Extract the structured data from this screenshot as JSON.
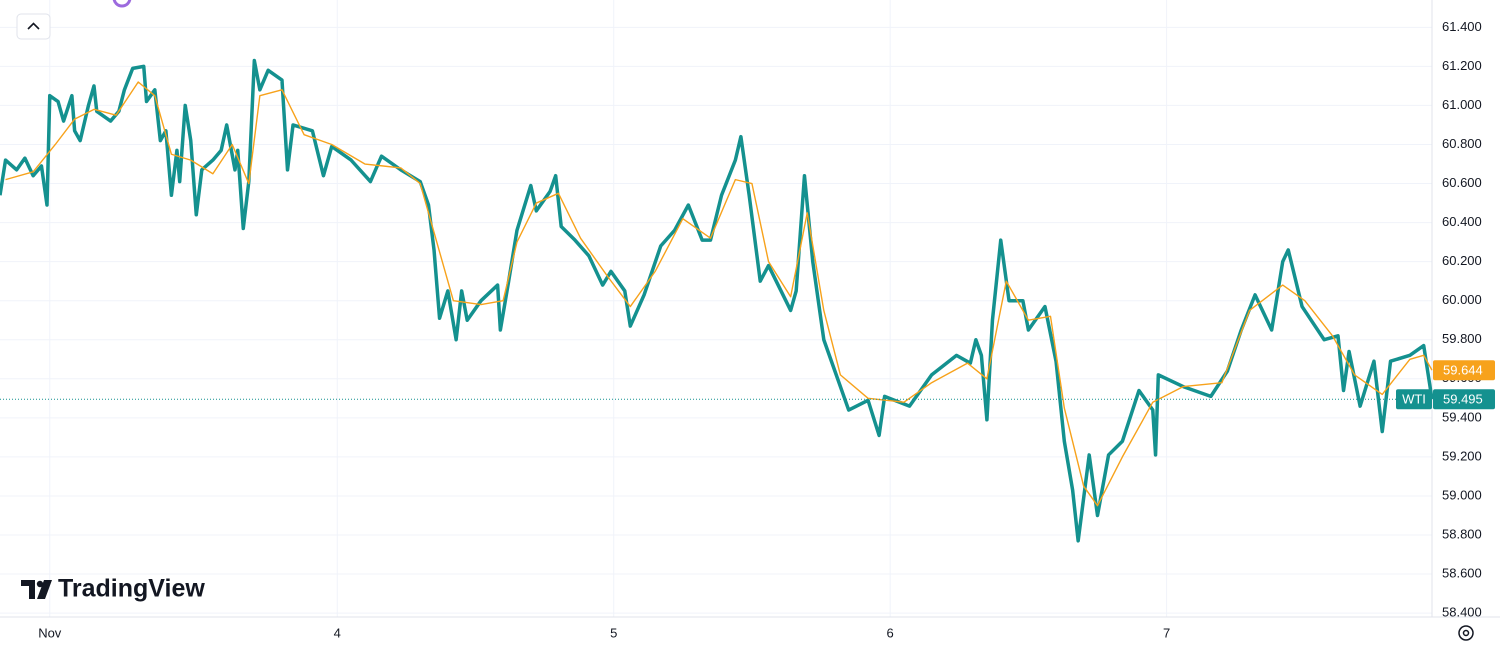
{
  "brand": "TradingView",
  "chart_data": {
    "type": "line",
    "xlim": [
      2.78,
      7.96
    ],
    "xticks": [
      {
        "value": 2.96,
        "label": "Nov"
      },
      4,
      5,
      6,
      7
    ],
    "ylim": [
      58.38,
      61.54
    ],
    "yticks": [
      {
        "value": 58.4,
        "label": "58.400"
      },
      {
        "value": 58.6,
        "label": "58.600"
      },
      {
        "value": 58.8,
        "label": "58.800"
      },
      {
        "value": 59.0,
        "label": "59.000"
      },
      {
        "value": 59.2,
        "label": "59.200"
      },
      {
        "value": 59.4,
        "label": "59.400"
      },
      {
        "value": 59.6,
        "label": "59.600"
      },
      {
        "value": 59.8,
        "label": "59.800"
      },
      {
        "value": 60.0,
        "label": "60.000"
      },
      {
        "value": 60.2,
        "label": "60.200"
      },
      {
        "value": 60.4,
        "label": "60.400"
      },
      {
        "value": 60.6,
        "label": "60.600"
      },
      {
        "value": 60.8,
        "label": "60.800"
      },
      {
        "value": 61.0,
        "label": "61.000"
      },
      {
        "value": 61.2,
        "label": "61.200"
      },
      {
        "value": 61.4,
        "label": "61.400"
      }
    ],
    "grid": true,
    "series": [
      {
        "name": "WTI",
        "color": "#14918f",
        "x": [
          2.78,
          2.8,
          2.84,
          2.87,
          2.9,
          2.93,
          2.95,
          2.96,
          2.99,
          3.01,
          3.04,
          3.05,
          3.07,
          3.1,
          3.12,
          3.13,
          3.18,
          3.21,
          3.23,
          3.26,
          3.3,
          3.31,
          3.34,
          3.36,
          3.38,
          3.4,
          3.42,
          3.43,
          3.45,
          3.47,
          3.49,
          3.51,
          3.55,
          3.58,
          3.6,
          3.63,
          3.64,
          3.66,
          3.68,
          3.7,
          3.72,
          3.75,
          3.8,
          3.82,
          3.84,
          3.91,
          3.95,
          3.98,
          4.05,
          4.12,
          4.16,
          4.23,
          4.3,
          4.33,
          4.35,
          4.37,
          4.4,
          4.43,
          4.45,
          4.47,
          4.52,
          4.58,
          4.59,
          4.62,
          4.65,
          4.7,
          4.72,
          4.77,
          4.79,
          4.81,
          4.86,
          4.91,
          4.96,
          4.99,
          5.04,
          5.06,
          5.11,
          5.17,
          5.22,
          5.27,
          5.32,
          5.35,
          5.39,
          5.44,
          5.46,
          5.49,
          5.53,
          5.56,
          5.64,
          5.66,
          5.69,
          5.72,
          5.76,
          5.8,
          5.85,
          5.92,
          5.96,
          5.98,
          6.07,
          6.15,
          6.24,
          6.29,
          6.31,
          6.33,
          6.35,
          6.37,
          6.4,
          6.43,
          6.48,
          6.5,
          6.56,
          6.6,
          6.63,
          6.66,
          6.68,
          6.72,
          6.75,
          6.79,
          6.84,
          6.9,
          6.95,
          6.96,
          6.97,
          7.06,
          7.16,
          7.22,
          7.27,
          7.32,
          7.38,
          7.42,
          7.44,
          7.49,
          7.57,
          7.62,
          7.64,
          7.66,
          7.7,
          7.75,
          7.78,
          7.81,
          7.88,
          7.93,
          7.96
        ],
        "values": [
          60.54,
          60.72,
          60.67,
          60.73,
          60.64,
          60.69,
          60.49,
          61.05,
          61.02,
          60.92,
          61.05,
          60.87,
          60.82,
          61.0,
          61.1,
          60.97,
          60.92,
          60.97,
          61.08,
          61.19,
          61.2,
          61.02,
          61.08,
          60.82,
          60.87,
          60.54,
          60.77,
          60.61,
          61.0,
          60.82,
          60.44,
          60.67,
          60.72,
          60.77,
          60.9,
          60.67,
          60.77,
          60.37,
          60.61,
          61.23,
          61.08,
          61.18,
          61.13,
          60.67,
          60.9,
          60.87,
          60.64,
          60.79,
          60.72,
          60.61,
          60.74,
          60.67,
          60.61,
          60.49,
          60.26,
          59.91,
          60.05,
          59.8,
          60.05,
          59.9,
          60.0,
          60.08,
          59.85,
          60.1,
          60.36,
          60.59,
          60.46,
          60.56,
          60.64,
          60.38,
          60.31,
          60.23,
          60.08,
          60.15,
          60.05,
          59.87,
          60.03,
          60.28,
          60.36,
          60.49,
          60.31,
          60.31,
          60.54,
          60.72,
          60.84,
          60.54,
          60.1,
          60.18,
          59.95,
          60.05,
          60.64,
          60.2,
          59.8,
          59.64,
          59.44,
          59.49,
          59.31,
          59.51,
          59.46,
          59.62,
          59.72,
          59.68,
          59.8,
          59.72,
          59.39,
          59.9,
          60.31,
          60.0,
          60.0,
          59.85,
          59.97,
          59.69,
          59.28,
          59.03,
          58.77,
          59.21,
          58.9,
          59.21,
          59.28,
          59.54,
          59.44,
          59.21,
          59.62,
          59.56,
          59.51,
          59.64,
          59.85,
          60.03,
          59.85,
          60.2,
          60.26,
          59.97,
          59.8,
          59.82,
          59.54,
          59.74,
          59.46,
          59.69,
          59.33,
          59.69,
          59.72,
          59.77,
          59.495
        ]
      },
      {
        "color": "#f7a21b",
        "x": [
          2.8,
          2.9,
          2.98,
          3.05,
          3.12,
          3.2,
          3.28,
          3.34,
          3.4,
          3.47,
          3.55,
          3.62,
          3.68,
          3.72,
          3.8,
          3.88,
          3.98,
          4.1,
          4.23,
          4.3,
          4.35,
          4.42,
          4.52,
          4.6,
          4.65,
          4.72,
          4.8,
          4.88,
          4.98,
          5.06,
          5.15,
          5.25,
          5.35,
          5.44,
          5.5,
          5.56,
          5.64,
          5.7,
          5.76,
          5.82,
          5.92,
          6.05,
          6.15,
          6.28,
          6.35,
          6.42,
          6.5,
          6.58,
          6.63,
          6.7,
          6.75,
          6.84,
          6.95,
          7.06,
          7.2,
          7.3,
          7.42,
          7.5,
          7.6,
          7.68,
          7.78,
          7.88,
          7.93,
          7.96
        ],
        "values": [
          60.62,
          60.66,
          60.8,
          60.93,
          60.98,
          60.95,
          61.12,
          61.05,
          60.75,
          60.72,
          60.65,
          60.8,
          60.6,
          61.05,
          61.08,
          60.85,
          60.8,
          60.7,
          60.68,
          60.6,
          60.35,
          60.0,
          59.98,
          60.0,
          60.3,
          60.5,
          60.55,
          60.32,
          60.12,
          59.97,
          60.15,
          60.42,
          60.32,
          60.62,
          60.6,
          60.2,
          60.02,
          60.45,
          59.95,
          59.62,
          59.5,
          59.48,
          59.58,
          59.68,
          59.6,
          60.1,
          59.9,
          59.92,
          59.45,
          59.05,
          58.95,
          59.2,
          59.48,
          59.56,
          59.58,
          59.95,
          60.08,
          60.0,
          59.82,
          59.62,
          59.52,
          59.7,
          59.72,
          59.644
        ]
      }
    ]
  }
}
